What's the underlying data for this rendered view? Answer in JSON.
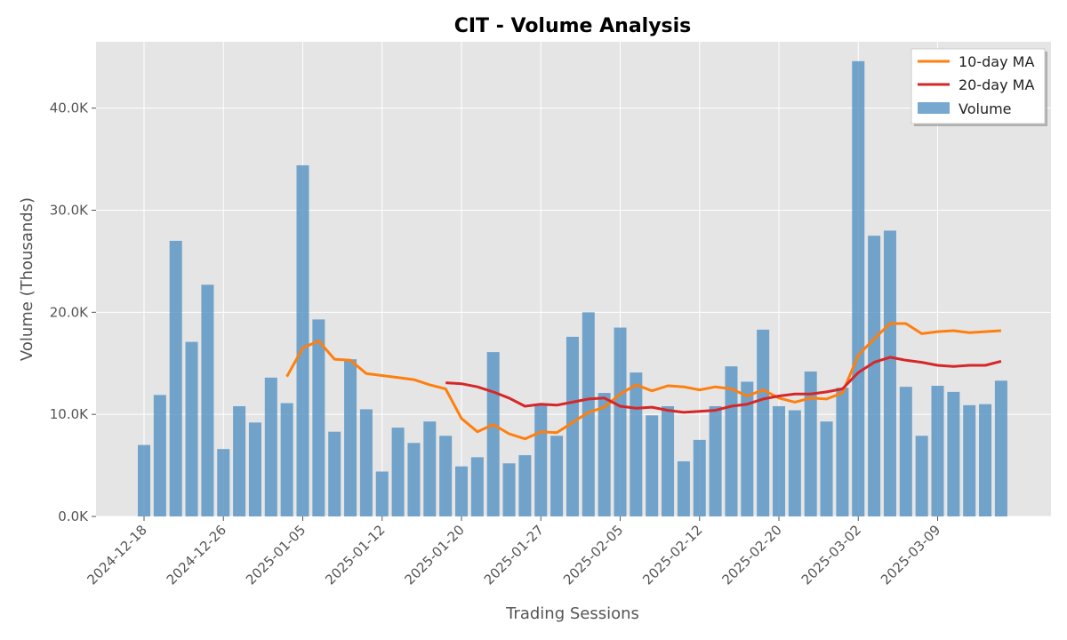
{
  "chart_data": {
    "type": "bar",
    "title": "CIT - Volume Analysis",
    "xlabel": "Trading Sessions",
    "ylabel": "Volume (Thousands)",
    "ylim": [
      0,
      46.5
    ],
    "yticks": [
      0,
      10,
      20,
      30,
      40
    ],
    "ytick_labels": [
      "0.0K",
      "10.0K",
      "20.0K",
      "30.0K",
      "40.0K"
    ],
    "xtick_labels": [
      "2024-12-18",
      "2024-12-26",
      "2025-01-05",
      "2025-01-12",
      "2025-01-20",
      "2025-01-27",
      "2025-02-05",
      "2025-02-12",
      "2025-02-20",
      "2025-03-02",
      "2025-03-09"
    ],
    "xtick_positions": [
      0,
      5,
      10,
      15,
      20,
      25,
      30,
      35,
      40,
      45,
      50
    ],
    "grid": true,
    "legend_position": "top-right",
    "colors": {
      "volume": "#4a8bbf",
      "ma10": "#ff7f0e",
      "ma20": "#d62728",
      "background": "#e5e5e5"
    },
    "series": [
      {
        "name": "Volume",
        "kind": "bar",
        "values": [
          7.0,
          11.9,
          27.0,
          17.1,
          22.7,
          6.6,
          10.8,
          9.2,
          13.6,
          11.1,
          34.4,
          19.3,
          8.3,
          15.4,
          10.5,
          4.4,
          8.7,
          7.2,
          9.3,
          7.9,
          4.9,
          5.8,
          16.1,
          5.2,
          6.0,
          10.9,
          7.9,
          17.6,
          20.0,
          12.1,
          18.5,
          14.1,
          9.9,
          10.8,
          5.4,
          7.5,
          10.8,
          14.7,
          13.2,
          18.3,
          10.8,
          10.4,
          14.2,
          9.3,
          12.6,
          44.6,
          27.5,
          28.0,
          12.7,
          7.9,
          12.8,
          12.2,
          10.9,
          11.0,
          13.3
        ]
      },
      {
        "name": "10-day MA",
        "kind": "line",
        "start_index": 9,
        "values": [
          13.7,
          16.5,
          17.2,
          15.4,
          15.3,
          14.0,
          13.8,
          13.6,
          13.4,
          12.9,
          12.5,
          9.6,
          8.3,
          9.0,
          8.1,
          7.6,
          8.3,
          8.2,
          9.2,
          10.2,
          10.7,
          12.0,
          12.9,
          12.3,
          12.8,
          12.7,
          12.4,
          12.7,
          12.5,
          11.8,
          12.4,
          11.6,
          11.2,
          11.6,
          11.5,
          12.1,
          15.8,
          17.4,
          18.9,
          18.9,
          17.9,
          18.1,
          18.2,
          18.0,
          18.1,
          18.2
        ]
      },
      {
        "name": "20-day MA",
        "kind": "line",
        "start_index": 19,
        "values": [
          13.1,
          13.0,
          12.7,
          12.2,
          11.6,
          10.8,
          11.0,
          10.9,
          11.2,
          11.5,
          11.6,
          10.8,
          10.6,
          10.7,
          10.4,
          10.2,
          10.3,
          10.4,
          10.8,
          11.0,
          11.5,
          11.8,
          12.0,
          12.0,
          12.2,
          12.5,
          14.1,
          15.1,
          15.6,
          15.3,
          15.1,
          14.8,
          14.7,
          14.8,
          14.8,
          15.2
        ]
      }
    ],
    "legend_order": [
      "10-day MA",
      "20-day MA",
      "Volume"
    ]
  }
}
